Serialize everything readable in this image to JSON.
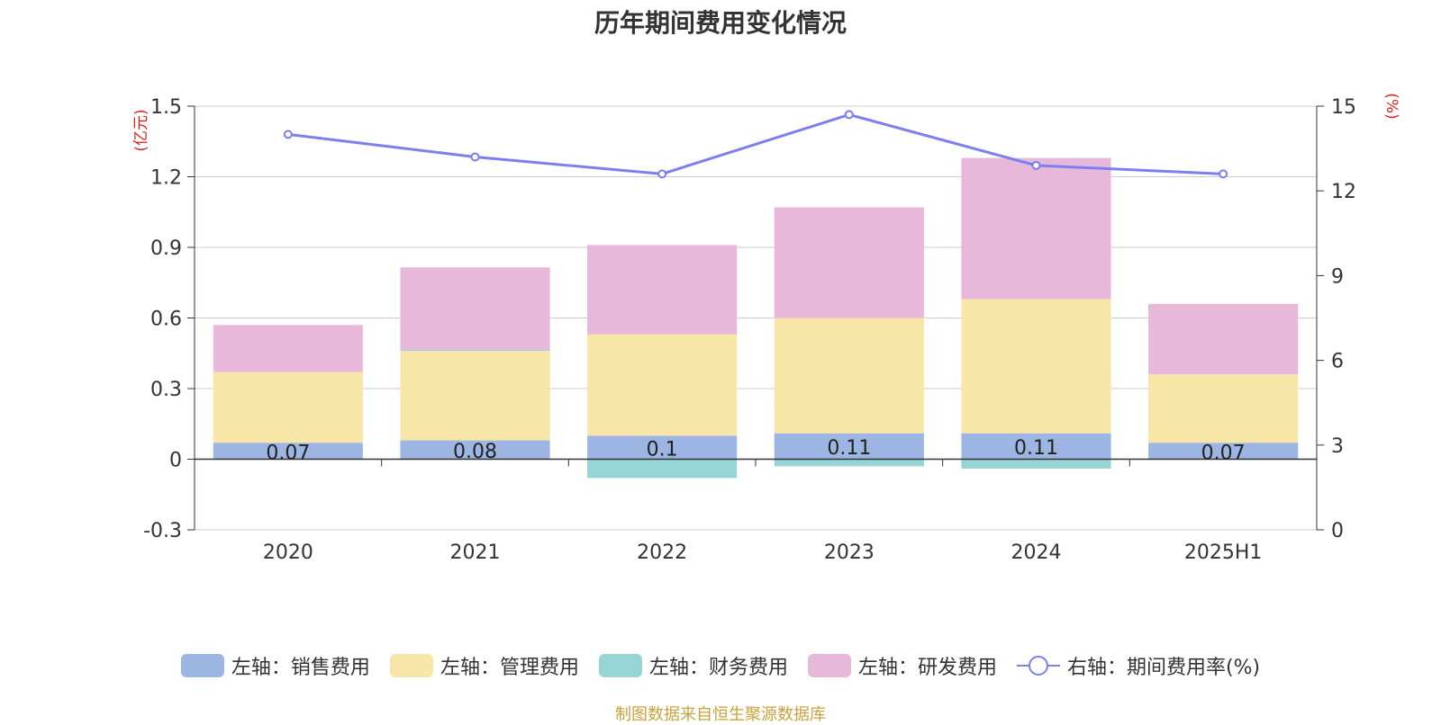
{
  "chart_data": {
    "type": "bar",
    "title": "历年期间费用变化情况",
    "categories": [
      "2020",
      "2021",
      "2022",
      "2023",
      "2024",
      "2025H1"
    ],
    "left_axis": {
      "unit": "(亿元)",
      "ylim": [
        -0.3,
        1.5
      ],
      "ticks": [
        "-0.3",
        "0",
        "0.3",
        "0.6",
        "0.9",
        "1.2",
        "1.5"
      ]
    },
    "right_axis": {
      "unit": "(%)",
      "ylim": [
        0,
        15
      ],
      "ticks": [
        "0",
        "3",
        "6",
        "9",
        "12",
        "15"
      ]
    },
    "series": [
      {
        "name": "左轴：销售费用",
        "type": "bar",
        "axis": "left",
        "color": "#9db5e2",
        "values": [
          0.07,
          0.08,
          0.1,
          0.11,
          0.11,
          0.07
        ],
        "labels": [
          "0.07",
          "0.08",
          "0.1",
          "0.11",
          "0.11",
          "0.07"
        ]
      },
      {
        "name": "左轴：管理费用",
        "type": "bar",
        "axis": "left",
        "color": "#f8e6a8",
        "values": [
          0.3,
          0.38,
          0.43,
          0.49,
          0.57,
          0.29
        ]
      },
      {
        "name": "左轴：财务费用",
        "type": "bar",
        "axis": "left",
        "color": "#96d4d6",
        "values": [
          0.0,
          0.005,
          -0.08,
          -0.03,
          -0.04,
          0.0
        ]
      },
      {
        "name": "左轴：研发费用",
        "type": "bar",
        "axis": "left",
        "color": "#e8b8da",
        "values": [
          0.2,
          0.35,
          0.38,
          0.47,
          0.6,
          0.3
        ]
      },
      {
        "name": "右轴：期间费用率(%)",
        "type": "line",
        "axis": "right",
        "color": "#7b7ff0",
        "values": [
          14.0,
          13.2,
          12.6,
          14.7,
          12.9,
          12.6
        ]
      }
    ],
    "grid": true,
    "legend_position": "bottom"
  },
  "source_note": "制图数据来自恒生聚源数据库"
}
